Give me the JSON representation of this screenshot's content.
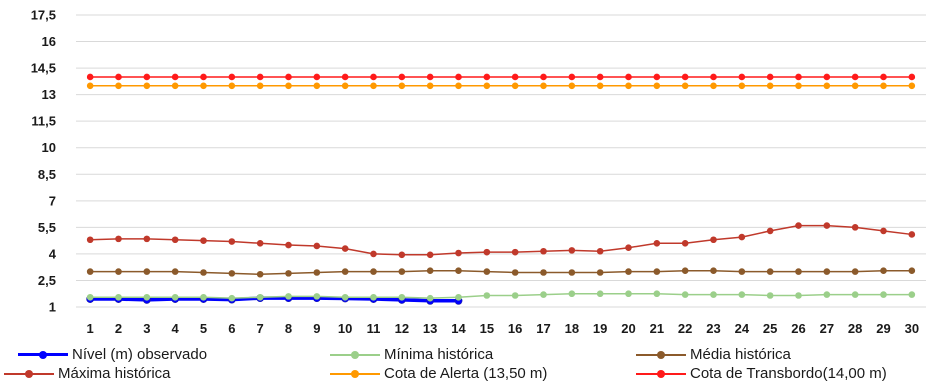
{
  "chart_data": {
    "type": "line",
    "x": [
      1,
      2,
      3,
      4,
      5,
      6,
      7,
      8,
      9,
      10,
      11,
      12,
      13,
      14,
      15,
      16,
      17,
      18,
      19,
      20,
      21,
      22,
      23,
      24,
      25,
      26,
      27,
      28,
      29,
      30
    ],
    "y_ticks": [
      "1",
      "2,5",
      "4",
      "5,5",
      "7",
      "8,5",
      "10",
      "11,5",
      "13",
      "14,5",
      "16",
      "17,5"
    ],
    "y_tick_values": [
      1,
      2.5,
      4,
      5.5,
      7,
      8.5,
      10,
      11.5,
      13,
      14.5,
      16,
      17.5
    ],
    "ylim": [
      1,
      17.5
    ],
    "grid": "horizontal",
    "legend_position": "bottom",
    "series": [
      {
        "name": "Nível (m) observado",
        "color": "#0000ff",
        "values": [
          1.45,
          1.45,
          1.4,
          1.45,
          1.45,
          1.42,
          1.5,
          1.5,
          1.5,
          1.48,
          1.45,
          1.4,
          1.35,
          1.35,
          null,
          null,
          null,
          null,
          null,
          null,
          null,
          null,
          null,
          null,
          null,
          null,
          null,
          null,
          null,
          null
        ]
      },
      {
        "name": "Mínima histórica",
        "color": "#9bcf8a",
        "values": [
          1.55,
          1.55,
          1.55,
          1.55,
          1.55,
          1.5,
          1.55,
          1.6,
          1.6,
          1.55,
          1.55,
          1.55,
          1.5,
          1.55,
          1.65,
          1.65,
          1.7,
          1.75,
          1.75,
          1.75,
          1.75,
          1.7,
          1.7,
          1.7,
          1.65,
          1.65,
          1.7,
          1.7,
          1.7,
          1.7
        ]
      },
      {
        "name": "Média histórica",
        "color": "#8b5a2b",
        "values": [
          3.0,
          3.0,
          3.0,
          3.0,
          2.95,
          2.9,
          2.85,
          2.9,
          2.95,
          3.0,
          3.0,
          3.0,
          3.05,
          3.05,
          3.0,
          2.95,
          2.95,
          2.95,
          2.95,
          3.0,
          3.0,
          3.05,
          3.05,
          3.0,
          3.0,
          3.0,
          3.0,
          3.0,
          3.05,
          3.05
        ]
      },
      {
        "name": "Máxima histórica",
        "color": "#c0392b",
        "values": [
          4.8,
          4.85,
          4.85,
          4.8,
          4.75,
          4.7,
          4.6,
          4.5,
          4.45,
          4.3,
          4.0,
          3.95,
          3.95,
          4.05,
          4.1,
          4.1,
          4.15,
          4.2,
          4.15,
          4.35,
          4.6,
          4.6,
          4.8,
          4.95,
          5.3,
          5.6,
          5.6,
          5.5,
          5.3,
          5.1
        ]
      },
      {
        "name": "Cota de Alerta (13,50 m)",
        "color": "#ff9900",
        "values": [
          13.5,
          13.5,
          13.5,
          13.5,
          13.5,
          13.5,
          13.5,
          13.5,
          13.5,
          13.5,
          13.5,
          13.5,
          13.5,
          13.5,
          13.5,
          13.5,
          13.5,
          13.5,
          13.5,
          13.5,
          13.5,
          13.5,
          13.5,
          13.5,
          13.5,
          13.5,
          13.5,
          13.5,
          13.5,
          13.5
        ]
      },
      {
        "name": "Cota de Transbordo(14,00 m)",
        "color": "#ff1a1a",
        "values": [
          14,
          14,
          14,
          14,
          14,
          14,
          14,
          14,
          14,
          14,
          14,
          14,
          14,
          14,
          14,
          14,
          14,
          14,
          14,
          14,
          14,
          14,
          14,
          14,
          14,
          14,
          14,
          14,
          14,
          14
        ]
      }
    ]
  }
}
